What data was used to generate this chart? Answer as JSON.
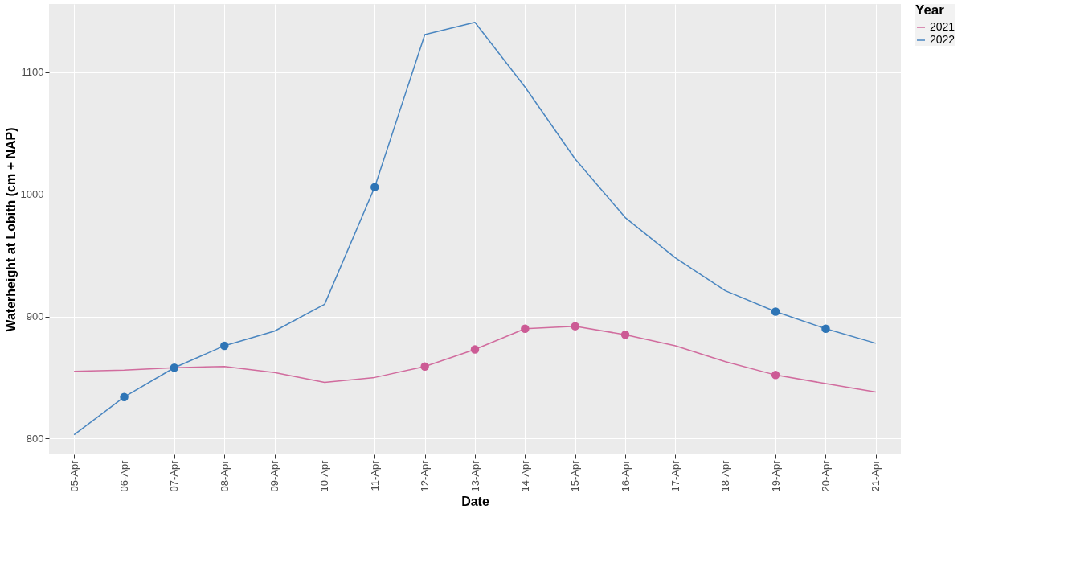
{
  "chart_data": {
    "type": "line",
    "xlabel": "Date",
    "ylabel": "Waterheight at Lobith (cm + NAP)",
    "legend_title": "Year",
    "legend": "right",
    "grid": true,
    "categories": [
      "05-Apr",
      "06-Apr",
      "07-Apr",
      "08-Apr",
      "09-Apr",
      "10-Apr",
      "11-Apr",
      "12-Apr",
      "13-Apr",
      "14-Apr",
      "15-Apr",
      "16-Apr",
      "17-Apr",
      "18-Apr",
      "19-Apr",
      "20-Apr",
      "21-Apr"
    ],
    "ylim": [
      787,
      1156
    ],
    "yticks": [
      800,
      900,
      1000,
      1100
    ],
    "series": [
      {
        "name": "2021",
        "color": "#d16c9e",
        "values": [
          855,
          856,
          858,
          859,
          854,
          846,
          850,
          859,
          873,
          890,
          892,
          885,
          876,
          863,
          852,
          845,
          838
        ]
      },
      {
        "name": "2022",
        "color": "#4a86c0",
        "values": [
          803,
          834,
          858,
          876,
          888,
          910,
          1006,
          1131,
          1141,
          1088,
          1029,
          981,
          948,
          921,
          904,
          890,
          878
        ]
      },
      {
        "type": "scatter",
        "color": "#cc5b95",
        "marker": "circle",
        "values": [
          null,
          null,
          null,
          null,
          null,
          null,
          null,
          859,
          873,
          890,
          892,
          885,
          null,
          null,
          852,
          null,
          null
        ]
      },
      {
        "type": "scatter",
        "color": "#2e75b6",
        "marker": "circle",
        "values": [
          null,
          834,
          858,
          876,
          null,
          null,
          1006,
          null,
          null,
          null,
          null,
          null,
          null,
          null,
          904,
          890,
          null
        ]
      }
    ]
  }
}
